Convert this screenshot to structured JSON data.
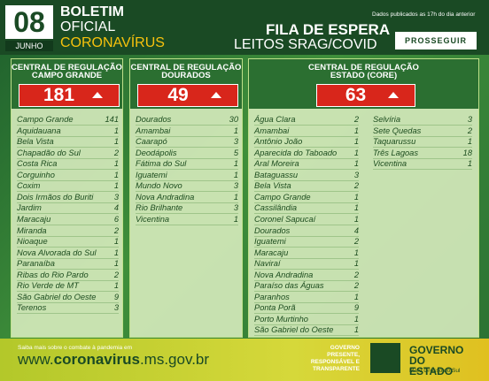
{
  "header": {
    "day": "08",
    "month": "JUNHO",
    "line1": "BOLETIM",
    "line2": "OFICIAL",
    "line3": "CORONAVÍRUS",
    "note": "Dados publicados as 17h do dia anterior",
    "title": "FILA DE ESPERA",
    "subtitle": "LEITOS SRAG/COVID",
    "logo": "PROSSEGUIR"
  },
  "columns": [
    {
      "label": "CENTRAL DE REGULAÇÃO",
      "region": "CAMPO GRANDE",
      "total": "181",
      "rows": [
        [
          "Campo Grande",
          "141"
        ],
        [
          "Aquidauana",
          "1"
        ],
        [
          "Bela Vista",
          "1"
        ],
        [
          "Chapadão do Sul",
          "2"
        ],
        [
          "Costa Rica",
          "1"
        ],
        [
          "Corguinho",
          "1"
        ],
        [
          "Coxim",
          "1"
        ],
        [
          "Dois Irmãos do Buriti",
          "3"
        ],
        [
          "Jardim",
          "4"
        ],
        [
          "Maracaju",
          "6"
        ],
        [
          "Miranda",
          "2"
        ],
        [
          "Nioaque",
          "1"
        ],
        [
          "Nova Alvorada do Sul",
          "1"
        ],
        [
          "Paranaíba",
          "1"
        ],
        [
          "Ribas do Rio Pardo",
          "2"
        ],
        [
          "Rio Verde de MT",
          "1"
        ],
        [
          "São Gabriel do Oeste",
          "9"
        ],
        [
          "Terenos",
          "3"
        ]
      ]
    },
    {
      "label": "CENTRAL DE REGULAÇÃO",
      "region": "DOURADOS",
      "total": "49",
      "rows": [
        [
          "Dourados",
          "30"
        ],
        [
          "Amambai",
          "1"
        ],
        [
          "Caarapó",
          "3"
        ],
        [
          "Deodápolis",
          "5"
        ],
        [
          "Fátima do Sul",
          "1"
        ],
        [
          "Iguatemi",
          "1"
        ],
        [
          "Mundo Novo",
          "3"
        ],
        [
          "Nova Andradina",
          "1"
        ],
        [
          "Rio Brilhante",
          "3"
        ],
        [
          "Vicentina",
          "1"
        ]
      ]
    },
    {
      "label": "CENTRAL DE REGULAÇÃO",
      "region": "ESTADO (CORE)",
      "total": "63",
      "rows": [
        [
          "Água Clara",
          "2"
        ],
        [
          "Amambai",
          "1"
        ],
        [
          "Antônio João",
          "1"
        ],
        [
          "Aparecida do Taboado",
          "1"
        ],
        [
          "Aral Moreira",
          "1"
        ],
        [
          "Bataguassu",
          "3"
        ],
        [
          "Bela Vista",
          "2"
        ],
        [
          "Campo Grande",
          "1"
        ],
        [
          "Cassilândia",
          "1"
        ],
        [
          "Coronel Sapucaí",
          "1"
        ],
        [
          "Dourados",
          "4"
        ],
        [
          "Iguatemi",
          "2"
        ],
        [
          "Maracaju",
          "1"
        ],
        [
          "Naviraí",
          "1"
        ],
        [
          "Nova Andradina",
          "2"
        ],
        [
          "Paraíso das Águas",
          "2"
        ],
        [
          "Paranhos",
          "1"
        ],
        [
          "Ponta Porã",
          "9"
        ],
        [
          "Porto Murtinho",
          "1"
        ],
        [
          "São Gabriel do Oeste",
          "1"
        ]
      ],
      "rows2": [
        [
          "Selvíria",
          "3"
        ],
        [
          "Sete Quedas",
          "2"
        ],
        [
          "Taquarussu",
          "1"
        ],
        [
          "Três Lagoas",
          "18"
        ],
        [
          "Vicentina",
          "1"
        ]
      ]
    }
  ],
  "footer": {
    "intro": "Saiba mais sobre o combate à pandemia em",
    "url_pre": "www.",
    "url_bold": "coronavirus",
    "url_post": ".ms.gov.br",
    "slogan": "GOVERNO PRESENTE, RESPONSÁVEL E TRANSPARENTE",
    "gov": "GOVERNO DO ESTADO",
    "state": "Mato Grosso do Sul"
  }
}
